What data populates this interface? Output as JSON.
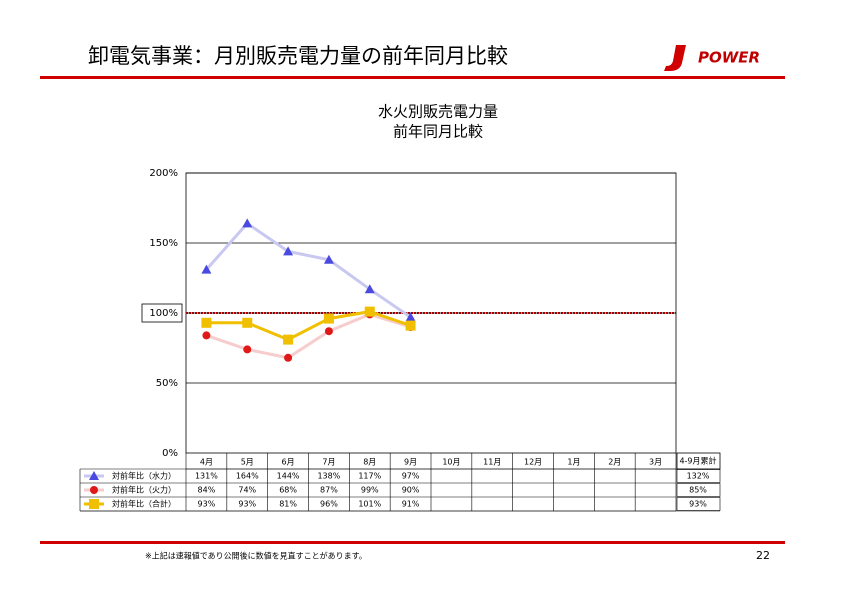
{
  "header": {
    "title": "卸電気事業：月別販売電力量の前年同月比較",
    "logo": "POWER"
  },
  "chart_data": {
    "type": "line",
    "title": [
      "水火別販売電力量",
      "前年同月比較"
    ],
    "categories": [
      "4月",
      "5月",
      "6月",
      "7月",
      "8月",
      "9月",
      "10月",
      "11月",
      "12月",
      "1月",
      "2月",
      "3月"
    ],
    "total_header": "4-9月累計",
    "series": [
      {
        "name": "対前年比（水力）",
        "color": "#c8c8f0",
        "marker_color": "#4a4ae0",
        "marker": "triangle",
        "values": [
          131,
          164,
          144,
          138,
          117,
          97,
          null,
          null,
          null,
          null,
          null,
          null
        ],
        "value_labels": [
          "131%",
          "164%",
          "144%",
          "138%",
          "117%",
          "97%",
          null,
          null,
          null,
          null,
          null,
          null
        ],
        "total": 132,
        "total_label": "132%"
      },
      {
        "name": "対前年比（火力）",
        "color": "#f6cccc",
        "marker_color": "#e01818",
        "marker": "circle",
        "values": [
          84,
          74,
          68,
          87,
          99,
          90,
          null,
          null,
          null,
          null,
          null,
          null
        ],
        "value_labels": [
          "84%",
          "74%",
          "68%",
          "87%",
          "99%",
          "90%",
          null,
          null,
          null,
          null,
          null,
          null
        ],
        "total": 85,
        "total_label": "85%"
      },
      {
        "name": "対前年比（合計）",
        "color": "#f0c000",
        "marker_color": "#f0c000",
        "marker": "square",
        "values": [
          93,
          93,
          81,
          96,
          101,
          91,
          null,
          null,
          null,
          null,
          null,
          null
        ],
        "value_labels": [
          "93%",
          "93%",
          "81%",
          "96%",
          "101%",
          "91%",
          null,
          null,
          null,
          null,
          null,
          null
        ],
        "total": 93,
        "total_label": "93%"
      }
    ],
    "reference": 100,
    "reference_color": "#a00000",
    "ylim": [
      0,
      200
    ],
    "yticks": [
      {
        "value": 0,
        "label": "0%"
      },
      {
        "value": 50,
        "label": "50%"
      },
      {
        "value": 100,
        "label": "100%"
      },
      {
        "value": 150,
        "label": "150%"
      },
      {
        "value": 200,
        "label": "200%"
      }
    ],
    "grid": true
  },
  "footer": {
    "note": "※上記は速報値であり公開後に数値を見直すことがあります。",
    "page": "22"
  }
}
